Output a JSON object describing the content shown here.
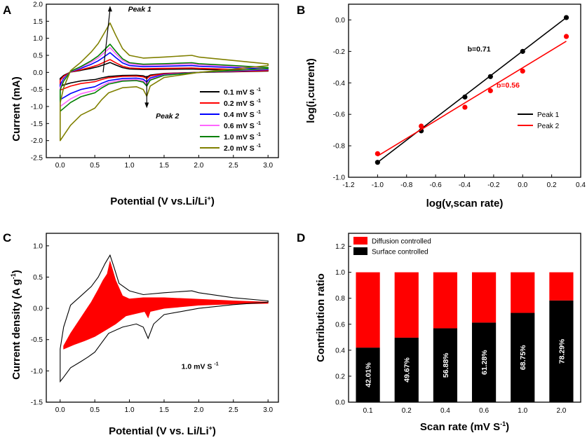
{
  "chart_data": [
    {
      "panel": "A",
      "type": "line",
      "xlabel": "Potential (V vs.Li/Li",
      "xlabel_sup": "+",
      "xlabel_tail": ")",
      "ylabel": "Current (mA)",
      "xlim": [
        -0.2,
        3.15
      ],
      "ylim": [
        -2.5,
        2.0
      ],
      "xticks": [
        "0.0",
        "0.5",
        "1.0",
        "1.5",
        "2.0",
        "2.5",
        "3.0"
      ],
      "yticks": [
        "-2.5",
        "-2.0",
        "-1.5",
        "-1.0",
        "-0.5",
        "0.0",
        "0.5",
        "1.0",
        "1.5",
        "2.0"
      ],
      "xtick_values": [
        0,
        0.5,
        1.0,
        1.5,
        2.0,
        2.5,
        3.0
      ],
      "ytick_values": [
        -2.5,
        -2.0,
        -1.5,
        -1.0,
        -0.5,
        0.0,
        0.5,
        1.0,
        1.5,
        2.0
      ],
      "annotations": {
        "peak1": "Peak 1",
        "peak2": "Peak 2"
      },
      "legend_position": "center-right",
      "legend_unit": "mV S",
      "legend_unit_sup": "-1",
      "series": [
        {
          "name": "0.1",
          "color": "#000000",
          "scale": 0.2
        },
        {
          "name": "0.2",
          "color": "#ff0000",
          "scale": 0.26
        },
        {
          "name": "0.4",
          "color": "#0000ff",
          "scale": 0.4
        },
        {
          "name": "0.6",
          "color": "#ff66ff",
          "scale": 0.5
        },
        {
          "name": "1.0",
          "color": "#008000",
          "scale": 0.57
        },
        {
          "name": "2.0",
          "color": "#808000",
          "scale": 1.0
        }
      ],
      "base_anodic": [
        [
          0.0,
          -0.9
        ],
        [
          0.05,
          -0.45
        ],
        [
          0.15,
          0.05
        ],
        [
          0.3,
          0.3
        ],
        [
          0.45,
          0.6
        ],
        [
          0.55,
          0.85
        ],
        [
          0.65,
          1.2
        ],
        [
          0.72,
          1.45
        ],
        [
          0.8,
          1.1
        ],
        [
          0.9,
          0.7
        ],
        [
          1.0,
          0.5
        ],
        [
          1.2,
          0.42
        ],
        [
          1.5,
          0.45
        ],
        [
          1.9,
          0.5
        ],
        [
          2.0,
          0.45
        ],
        [
          2.5,
          0.35
        ],
        [
          3.0,
          0.25
        ]
      ],
      "base_cathodic": [
        [
          3.0,
          0.2
        ],
        [
          2.5,
          0.1
        ],
        [
          2.0,
          0.0
        ],
        [
          1.5,
          -0.15
        ],
        [
          1.3,
          -0.4
        ],
        [
          1.25,
          -0.7
        ],
        [
          1.2,
          -0.5
        ],
        [
          1.1,
          -0.42
        ],
        [
          0.9,
          -0.45
        ],
        [
          0.7,
          -0.6
        ],
        [
          0.6,
          -0.8
        ],
        [
          0.5,
          -1.05
        ],
        [
          0.4,
          -1.15
        ],
        [
          0.3,
          -1.25
        ],
        [
          0.15,
          -1.55
        ],
        [
          0.05,
          -1.85
        ],
        [
          0.0,
          -2.0
        ]
      ]
    },
    {
      "panel": "B",
      "type": "scatter",
      "xlabel": "log(v,scan rate)",
      "ylabel": "log(i,current)",
      "xlim": [
        -1.2,
        0.4
      ],
      "ylim": [
        -1.0,
        0.1
      ],
      "xticks": [
        "-1.2",
        "-1.0",
        "-0.8",
        "-0.6",
        "-0.4",
        "-0.2",
        "0.0",
        "0.2",
        "0.4"
      ],
      "yticks": [
        "-1.0",
        "-0.8",
        "-0.6",
        "-0.4",
        "-0.2",
        "0.0"
      ],
      "xtick_values": [
        -1.2,
        -1.0,
        -0.8,
        -0.6,
        -0.4,
        -0.2,
        0.0,
        0.2,
        0.4
      ],
      "ytick_values": [
        -1.0,
        -0.8,
        -0.6,
        -0.4,
        -0.2,
        0.0
      ],
      "legend_position": "bottom-right",
      "series": [
        {
          "name": "Peak 1",
          "color": "#000000",
          "slope_label": "b=0.71",
          "x": [
            -1.0,
            -0.699,
            -0.398,
            -0.222,
            0.0,
            0.301
          ],
          "y": [
            -0.905,
            -0.705,
            -0.49,
            -0.36,
            -0.2,
            0.015
          ],
          "fit": [
            [
              -1.0,
              -0.905
            ],
            [
              0.301,
              0.015
            ]
          ]
        },
        {
          "name": "Peak 2",
          "color": "#ff0000",
          "slope_label": "b=0.56",
          "x": [
            -1.0,
            -0.699,
            -0.398,
            -0.222,
            0.0,
            0.301
          ],
          "y": [
            -0.85,
            -0.675,
            -0.555,
            -0.45,
            -0.325,
            -0.105
          ],
          "fit": [
            [
              -1.0,
              -0.865
            ],
            [
              0.301,
              -0.135
            ]
          ]
        }
      ]
    },
    {
      "panel": "C",
      "type": "area",
      "xlabel": "Potential (V vs. Li/Li",
      "xlabel_sup": "+",
      "xlabel_tail": ")",
      "ylabel": "Current density (A g",
      "ylabel_sup": "-1",
      "ylabel_tail": ")",
      "xlim": [
        -0.2,
        3.15
      ],
      "ylim": [
        -1.5,
        1.2
      ],
      "xticks": [
        "0.0",
        "0.5",
        "1.0",
        "1.5",
        "2.0",
        "2.5",
        "3.0"
      ],
      "yticks": [
        "-1.5",
        "-1.0",
        "-0.5",
        "0.0",
        "0.5",
        "1.0"
      ],
      "xtick_values": [
        0,
        0.5,
        1.0,
        1.5,
        2.0,
        2.5,
        3.0
      ],
      "ytick_values": [
        -1.5,
        -1.0,
        -0.5,
        0.0,
        0.5,
        1.0
      ],
      "annotation": "1.0 mV S",
      "annotation_sup": "-1",
      "outline_anodic": [
        [
          0.0,
          -0.65
        ],
        [
          0.05,
          -0.3
        ],
        [
          0.15,
          0.05
        ],
        [
          0.3,
          0.2
        ],
        [
          0.45,
          0.35
        ],
        [
          0.55,
          0.5
        ],
        [
          0.65,
          0.72
        ],
        [
          0.72,
          0.85
        ],
        [
          0.78,
          0.65
        ],
        [
          0.85,
          0.4
        ],
        [
          1.0,
          0.28
        ],
        [
          1.2,
          0.22
        ],
        [
          1.5,
          0.25
        ],
        [
          1.9,
          0.28
        ],
        [
          2.0,
          0.25
        ],
        [
          2.5,
          0.17
        ],
        [
          3.0,
          0.12
        ]
      ],
      "outline_cathodic": [
        [
          3.0,
          0.1
        ],
        [
          2.5,
          0.06
        ],
        [
          2.0,
          0.0
        ],
        [
          1.5,
          -0.1
        ],
        [
          1.35,
          -0.25
        ],
        [
          1.27,
          -0.48
        ],
        [
          1.2,
          -0.3
        ],
        [
          1.1,
          -0.25
        ],
        [
          0.9,
          -0.3
        ],
        [
          0.7,
          -0.4
        ],
        [
          0.6,
          -0.55
        ],
        [
          0.5,
          -0.7
        ],
        [
          0.4,
          -0.78
        ],
        [
          0.3,
          -0.85
        ],
        [
          0.15,
          -0.95
        ],
        [
          0.05,
          -1.1
        ],
        [
          0.0,
          -1.17
        ]
      ],
      "fill_upper": [
        [
          0.05,
          -0.6
        ],
        [
          0.15,
          -0.4
        ],
        [
          0.3,
          -0.15
        ],
        [
          0.45,
          0.1
        ],
        [
          0.55,
          0.3
        ],
        [
          0.62,
          0.45
        ],
        [
          0.68,
          0.55
        ],
        [
          0.72,
          0.75
        ],
        [
          0.76,
          0.6
        ],
        [
          0.8,
          0.45
        ],
        [
          0.9,
          0.2
        ],
        [
          1.0,
          0.15
        ],
        [
          1.2,
          0.17
        ],
        [
          1.5,
          0.17
        ],
        [
          1.9,
          0.15
        ],
        [
          2.5,
          0.12
        ],
        [
          3.0,
          0.1
        ]
      ],
      "fill_lower": [
        [
          3.0,
          0.08
        ],
        [
          2.5,
          0.07
        ],
        [
          2.0,
          0.05
        ],
        [
          1.5,
          0.0
        ],
        [
          1.3,
          -0.05
        ],
        [
          1.27,
          -0.15
        ],
        [
          1.22,
          -0.05
        ],
        [
          1.1,
          -0.08
        ],
        [
          0.95,
          -0.12
        ],
        [
          0.8,
          -0.25
        ],
        [
          0.65,
          -0.35
        ],
        [
          0.5,
          -0.45
        ],
        [
          0.35,
          -0.52
        ],
        [
          0.2,
          -0.58
        ],
        [
          0.05,
          -0.65
        ]
      ]
    },
    {
      "panel": "D",
      "type": "bar",
      "xlabel": "Scan rate (mV S",
      "xlabel_sup": "-1",
      "xlabel_tail": ")",
      "ylabel": "Contribution ratio",
      "ylim": [
        0.0,
        1.3
      ],
      "yticks": [
        "0.0",
        "0.2",
        "0.4",
        "0.6",
        "0.8",
        "1.0",
        "1.2"
      ],
      "ytick_values": [
        0.0,
        0.2,
        0.4,
        0.6,
        0.8,
        1.0,
        1.2
      ],
      "categories": [
        "0.1",
        "0.2",
        "0.4",
        "0.6",
        "1.0",
        "2.0"
      ],
      "legend_position": "top-left",
      "series": [
        {
          "name": "Diffusion controlled",
          "color": "#ff0000",
          "values": [
            0.5799,
            0.5033,
            0.4312,
            0.3872,
            0.3125,
            0.2171
          ]
        },
        {
          "name": "Surface controlled",
          "color": "#000000",
          "values": [
            0.4201,
            0.4967,
            0.5688,
            0.6128,
            0.6875,
            0.7829
          ]
        }
      ],
      "data_labels": [
        "42.01%",
        "49.67%",
        "56.88%",
        "61.28%",
        "68.75%",
        "78.29%"
      ]
    }
  ],
  "panel_labels": [
    "A",
    "B",
    "C",
    "D"
  ]
}
